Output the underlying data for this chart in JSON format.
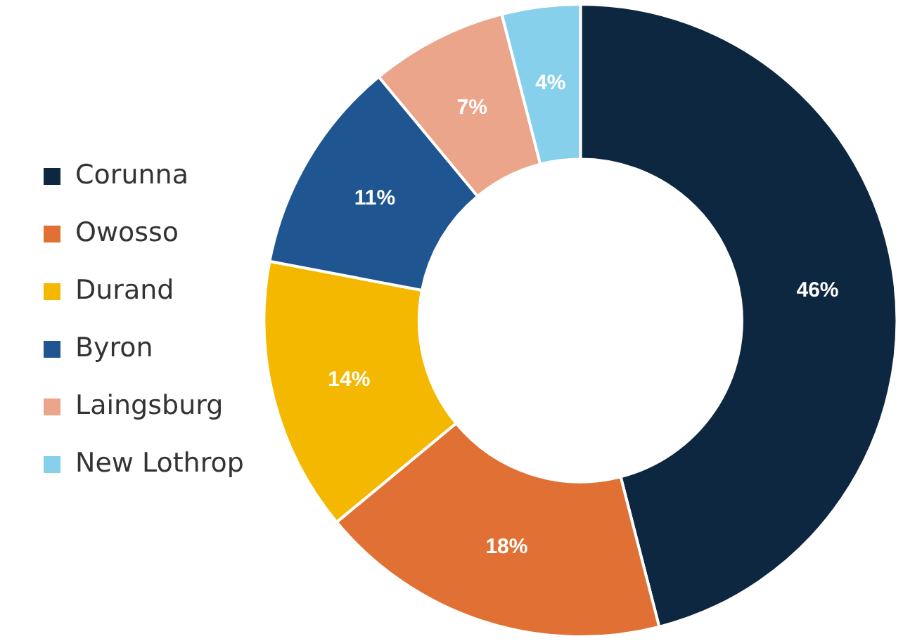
{
  "chart_data": {
    "type": "donut",
    "categories": [
      "Corunna",
      "Owosso",
      "Durand",
      "Byron",
      "Laingsburg",
      "New Lothrop"
    ],
    "values": [
      46,
      18,
      14,
      11,
      7,
      4
    ],
    "colors": [
      "#0d2740",
      "#e07034",
      "#f5b800",
      "#1f5591",
      "#eba58a",
      "#86d0ec"
    ],
    "value_labels": [
      "46%",
      "18%",
      "14%",
      "11%",
      "7%",
      "4%"
    ],
    "legend": "left"
  }
}
